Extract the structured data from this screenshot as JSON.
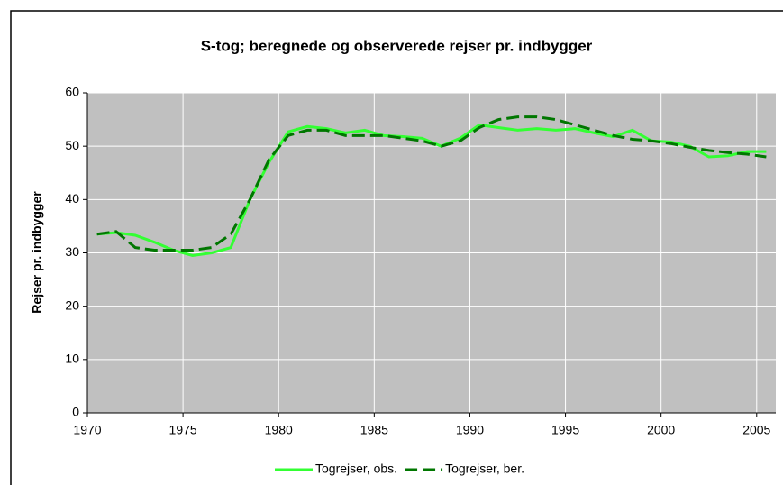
{
  "chart_data": {
    "type": "line",
    "title": "S-tog; beregnede og observerede rejser pr. indbygger",
    "y_label": "Rejser pr. indbygger",
    "x": [
      1970.5,
      1971.5,
      1972.5,
      1973.5,
      1974.5,
      1975.5,
      1976.5,
      1977.5,
      1978.5,
      1979.5,
      1980.5,
      1981.5,
      1982.5,
      1983.5,
      1984.5,
      1985.5,
      1986.5,
      1987.5,
      1988.5,
      1989.5,
      1990.5,
      1991.5,
      1992.5,
      1993.5,
      1994.5,
      1995.5,
      1996.5,
      1997.5,
      1998.5,
      1999.5,
      2000.5,
      2001.5,
      2002.5,
      2003.5,
      2004.5,
      2005.5
    ],
    "series": [
      {
        "name": "Togrejser, obs.",
        "color": "#33ff33",
        "dashed": false,
        "values": [
          33.5,
          33.8,
          33.3,
          32,
          30.5,
          29.5,
          30,
          31,
          40,
          47,
          52.7,
          53.7,
          53.3,
          52.5,
          53,
          52,
          51.8,
          51.5,
          50,
          51.5,
          54,
          53.5,
          53,
          53.3,
          53,
          53.3,
          52.5,
          51.8,
          53,
          51,
          50.8,
          50,
          48,
          48.2,
          49,
          49
        ]
      },
      {
        "name": "Togrejser, ber.",
        "color": "#007700",
        "dashed": true,
        "values": [
          33.5,
          34,
          31,
          30.5,
          30.5,
          30.5,
          31,
          33.5,
          40,
          47.5,
          52,
          53,
          53,
          52,
          52,
          52,
          51.5,
          51,
          50,
          51,
          53.5,
          55,
          55.5,
          55.5,
          55,
          54,
          53,
          52,
          51.3,
          51,
          50.5,
          49.8,
          49.2,
          48.8,
          48.5,
          48
        ]
      }
    ],
    "xlim": [
      1970,
      2006
    ],
    "xticks": [
      1970,
      1975,
      1980,
      1985,
      1990,
      1995,
      2000,
      2005
    ],
    "ylim": [
      0,
      60
    ],
    "yticks": [
      0,
      10,
      20,
      30,
      40,
      50,
      60
    ],
    "grid": true,
    "legend": "bottom"
  }
}
